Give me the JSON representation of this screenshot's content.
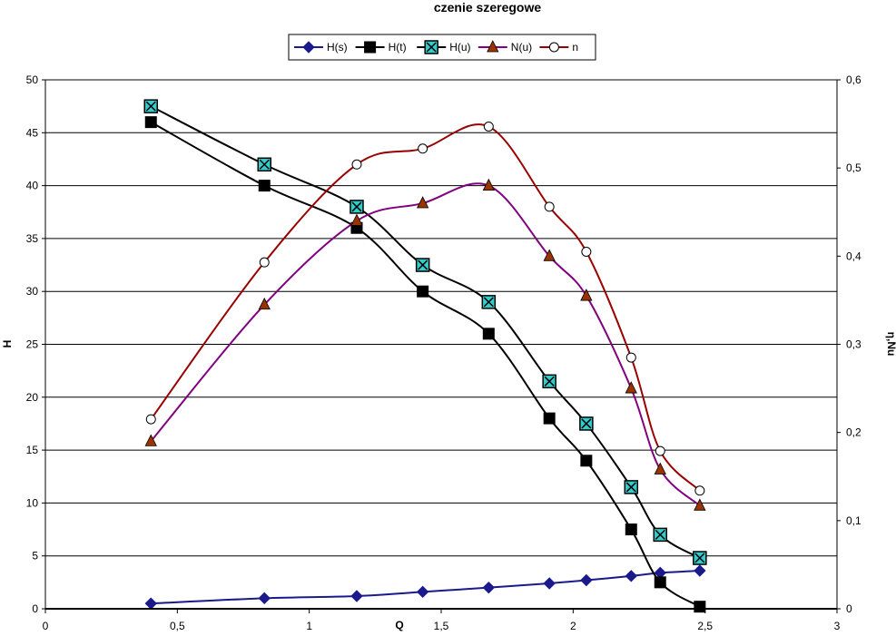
{
  "chart_data": {
    "type": "line",
    "title": "czenie szeregowe",
    "xlabel": "Q",
    "ylabel": "H",
    "y2label": "η,Nu",
    "xlim": [
      0,
      3
    ],
    "ylim": [
      0,
      50
    ],
    "y2lim": [
      0,
      0.6
    ],
    "xticks": [
      "0",
      "0,5",
      "1",
      "1,5",
      "2",
      "2,5",
      "3"
    ],
    "yticks": [
      "0",
      "5",
      "10",
      "15",
      "20",
      "25",
      "30",
      "35",
      "40",
      "45",
      "50"
    ],
    "y2ticks": [
      "0",
      "0,1",
      "0,2",
      "0,3",
      "0,4",
      "0,5",
      "0,6"
    ],
    "grid": "horizontal",
    "legend": "top-center",
    "x": [
      0.4,
      0.83,
      1.18,
      1.43,
      1.68,
      1.91,
      2.05,
      2.22,
      2.33,
      2.48
    ],
    "series": [
      {
        "name": "H(s)",
        "axis": "left",
        "color": "#1a1a8c",
        "marker": "diamond",
        "markerFill": "#1a1a8c",
        "values": [
          0.5,
          1.0,
          1.2,
          1.6,
          2.0,
          2.4,
          2.7,
          3.1,
          3.4,
          3.6
        ]
      },
      {
        "name": "H(t)",
        "axis": "left",
        "color": "#000000",
        "marker": "square",
        "markerFill": "#000000",
        "values": [
          46.0,
          40.0,
          36.0,
          30.0,
          26.0,
          18.0,
          14.0,
          7.5,
          2.5,
          0.2
        ]
      },
      {
        "name": "H(u)",
        "axis": "left",
        "color": "#000000",
        "marker": "xsquare",
        "markerFill": "#33cccc",
        "values": [
          47.5,
          42.0,
          38.0,
          32.5,
          29.0,
          21.5,
          17.5,
          11.5,
          7.0,
          4.8
        ]
      },
      {
        "name": "N(u)",
        "axis": "right",
        "color": "#800080",
        "marker": "triangle",
        "markerFill": "#993300",
        "values": [
          0.19,
          0.345,
          0.44,
          0.46,
          0.48,
          0.4,
          0.355,
          0.25,
          0.158,
          0.117
        ]
      },
      {
        "name": "n",
        "axis": "right",
        "color": "#990000",
        "marker": "circle",
        "markerFill": "#ffffff",
        "values": [
          0.215,
          0.393,
          0.504,
          0.522,
          0.547,
          0.456,
          0.405,
          0.285,
          0.179,
          0.134
        ]
      }
    ]
  }
}
